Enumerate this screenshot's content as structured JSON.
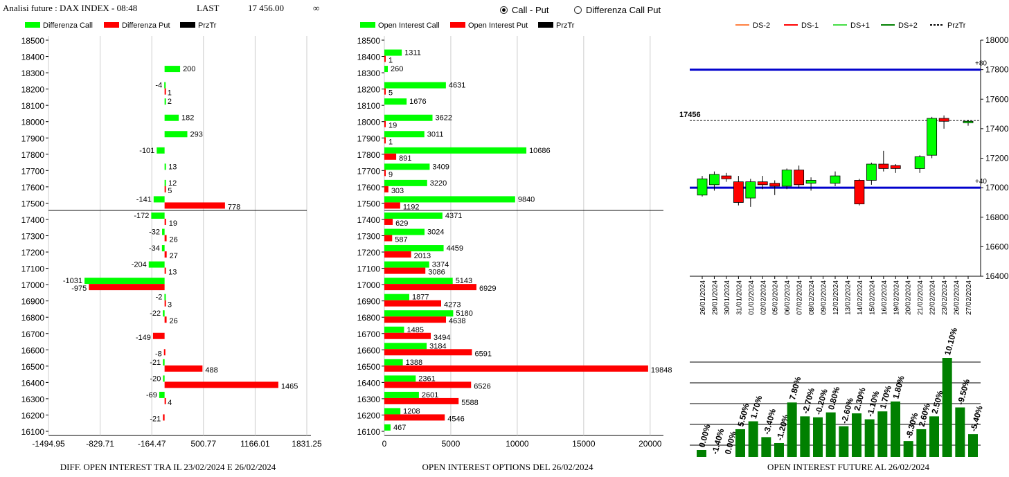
{
  "header": {
    "title": "Analisi future : DAX INDEX - 08:48",
    "last_label": "LAST",
    "last_value": "17 456.00",
    "infinity": "∞"
  },
  "toggle": {
    "options": [
      {
        "label": "Call - Put",
        "selected": true
      },
      {
        "label": "Differenza Call Put",
        "selected": false
      }
    ]
  },
  "footers": {
    "left": "DIFF. OPEN INTEREST TRA IL 23/02/2024 E 26/02/2024",
    "middle": "OPEN INTEREST OPTIONS DEL 26/02/2024",
    "right": "OPEN INTEREST FUTURE AL 26/02/2024"
  },
  "colors": {
    "call": "#00FF00",
    "put": "#FF0000",
    "price": "#000000",
    "blue_line": "#0000CC",
    "bar_green": "#008000"
  },
  "chart_data": [
    {
      "type": "bar",
      "orientation": "horizontal",
      "legend": [
        "Differenza Call",
        "Differenza Put",
        "PrzTr"
      ],
      "strikes": [
        18500,
        18400,
        18300,
        18200,
        18100,
        18000,
        17900,
        17800,
        17700,
        17600,
        17500,
        17400,
        17300,
        17200,
        17100,
        17000,
        16900,
        16800,
        16700,
        16600,
        16500,
        16400,
        16300,
        16200,
        16100
      ],
      "series": [
        {
          "name": "Differenza Call",
          "values": [
            null,
            null,
            200,
            -4,
            2,
            182,
            293,
            -101,
            13,
            12,
            -141,
            -172,
            -32,
            -34,
            -204,
            -1031,
            -2,
            -22,
            null,
            null,
            -21,
            -20,
            -69,
            null,
            null
          ]
        },
        {
          "name": "Differenza Put",
          "values": [
            null,
            null,
            null,
            1,
            null,
            null,
            null,
            null,
            null,
            5,
            778,
            19,
            26,
            27,
            13,
            -975,
            3,
            26,
            -149,
            -8,
            488,
            1465,
            4,
            -21,
            null
          ]
        }
      ],
      "price_strike": 17456,
      "xlim": [
        -1494.95,
        1831.25
      ],
      "xticks": [
        "-1494.95",
        "-829.71",
        "-164.47",
        "500.77",
        "1166.01",
        "1831.25"
      ],
      "ylim": [
        16100,
        18500
      ]
    },
    {
      "type": "bar",
      "orientation": "horizontal",
      "legend": [
        "Open Interest Call",
        "Open Interest Put",
        "PrzTr"
      ],
      "strikes": [
        18500,
        18400,
        18300,
        18200,
        18100,
        18000,
        17900,
        17800,
        17700,
        17600,
        17500,
        17400,
        17300,
        17200,
        17100,
        17000,
        16900,
        16800,
        16700,
        16600,
        16500,
        16400,
        16300,
        16200,
        16100
      ],
      "series": [
        {
          "name": "Open Interest Call",
          "values": [
            null,
            1311,
            260,
            4631,
            1676,
            3622,
            3011,
            10686,
            3409,
            3220,
            9840,
            4371,
            3024,
            4459,
            3374,
            5143,
            1877,
            5180,
            1485,
            3184,
            1388,
            2361,
            2601,
            1208,
            467
          ]
        },
        {
          "name": "Open Interest Put",
          "values": [
            null,
            1,
            null,
            5,
            null,
            19,
            1,
            891,
            9,
            303,
            1192,
            629,
            587,
            2013,
            3086,
            6929,
            4273,
            4638,
            3494,
            6591,
            19848,
            6526,
            5588,
            4546,
            null
          ]
        }
      ],
      "price_strike": 17456,
      "xlim": [
        0,
        21000
      ],
      "xticks": [
        "0",
        "5000",
        "10000",
        "15000",
        "20000"
      ],
      "ylim": [
        16100,
        18500
      ]
    },
    {
      "type": "candlestick",
      "legend": [
        "DS-2",
        "DS-1",
        "DS+1",
        "DS+2",
        "PrzTr"
      ],
      "dates": [
        "26/01/2024",
        "29/01/2024",
        "30/01/2024",
        "31/01/2024",
        "01/02/2024",
        "02/02/2024",
        "05/02/2024",
        "06/02/2024",
        "07/02/2024",
        "08/02/2024",
        "09/02/2024",
        "12/02/2024",
        "13/02/2024",
        "14/02/2024",
        "15/02/2024",
        "16/02/2024",
        "19/02/2024",
        "20/02/2024",
        "21/02/2024",
        "22/02/2024",
        "23/02/2024",
        "26/02/2024",
        "27/02/2024"
      ],
      "candles": [
        {
          "o": 16950,
          "c": 17060,
          "h": 17080,
          "l": 16940
        },
        {
          "o": 17020,
          "c": 17090,
          "h": 17110,
          "l": 16980
        },
        {
          "o": 17080,
          "c": 17060,
          "h": 17100,
          "l": 17040
        },
        {
          "o": 17040,
          "c": 16900,
          "h": 17080,
          "l": 16880
        },
        {
          "o": 16930,
          "c": 17040,
          "h": 17060,
          "l": 16870
        },
        {
          "o": 17040,
          "c": 17020,
          "h": 17080,
          "l": 16990
        },
        {
          "o": 17030,
          "c": 17010,
          "h": 17050,
          "l": 16950
        },
        {
          "o": 17010,
          "c": 17120,
          "h": 17130,
          "l": 16990
        },
        {
          "o": 17120,
          "c": 17020,
          "h": 17150,
          "l": 17000
        },
        {
          "o": 17030,
          "c": 17050,
          "h": 17070,
          "l": 16980
        },
        null,
        {
          "o": 17030,
          "c": 17080,
          "h": 17110,
          "l": 17010
        },
        null,
        {
          "o": 17050,
          "c": 16890,
          "h": 17060,
          "l": 16880
        },
        {
          "o": 17050,
          "c": 17160,
          "h": 17170,
          "l": 17020
        },
        {
          "o": 17160,
          "c": 17130,
          "h": 17250,
          "l": 17110
        },
        {
          "o": 17150,
          "c": 17130,
          "h": 17160,
          "l": 17100
        },
        null,
        {
          "o": 17130,
          "c": 17210,
          "h": 17220,
          "l": 17100
        },
        {
          "o": 17220,
          "c": 17470,
          "h": 17480,
          "l": 17200
        },
        {
          "o": 17470,
          "c": 17450,
          "h": 17490,
          "l": 17400
        },
        null,
        {
          "o": 17440,
          "c": 17450,
          "h": 17460,
          "l": 17420
        }
      ],
      "price": 17456,
      "price_label": "17456",
      "levels": [
        {
          "value": 17800,
          "label": "+80"
        },
        {
          "value": 17000,
          "label": "+40"
        }
      ],
      "ylim": [
        16400,
        18000
      ],
      "yticks": [
        "16400",
        "16600",
        "16800",
        "17000",
        "17200",
        "17400",
        "17600",
        "17800",
        "18000"
      ]
    },
    {
      "type": "bar",
      "labels": [
        "0.00%",
        "-1.40%",
        "0.00%",
        "5.50%",
        "1.70%",
        "-3.40%",
        "-1.20%",
        "7.80%",
        "-2.70%",
        "-0.20%",
        "0.80%",
        "-2.60%",
        "2.30%",
        "-1.10%",
        "1.70%",
        "1.80%",
        "-8.30%",
        "2.60%",
        "2.50%",
        "10.10%",
        "-9.50%",
        "-5.40%"
      ],
      "values": [
        0.0,
        -1.4,
        0.0,
        5.5,
        1.7,
        -3.4,
        -1.2,
        7.8,
        -2.7,
        -0.2,
        0.8,
        -2.6,
        2.3,
        -1.1,
        1.7,
        1.8,
        -8.3,
        2.6,
        2.5,
        10.1,
        -9.5,
        -5.4
      ],
      "relative_heights": [
        0.07,
        0.0,
        0.0,
        0.28,
        0.36,
        0.2,
        0.14,
        0.55,
        0.41,
        0.4,
        0.45,
        0.31,
        0.44,
        0.38,
        0.46,
        0.56,
        0.16,
        0.28,
        0.41,
        1.0,
        0.5,
        0.23
      ]
    }
  ]
}
